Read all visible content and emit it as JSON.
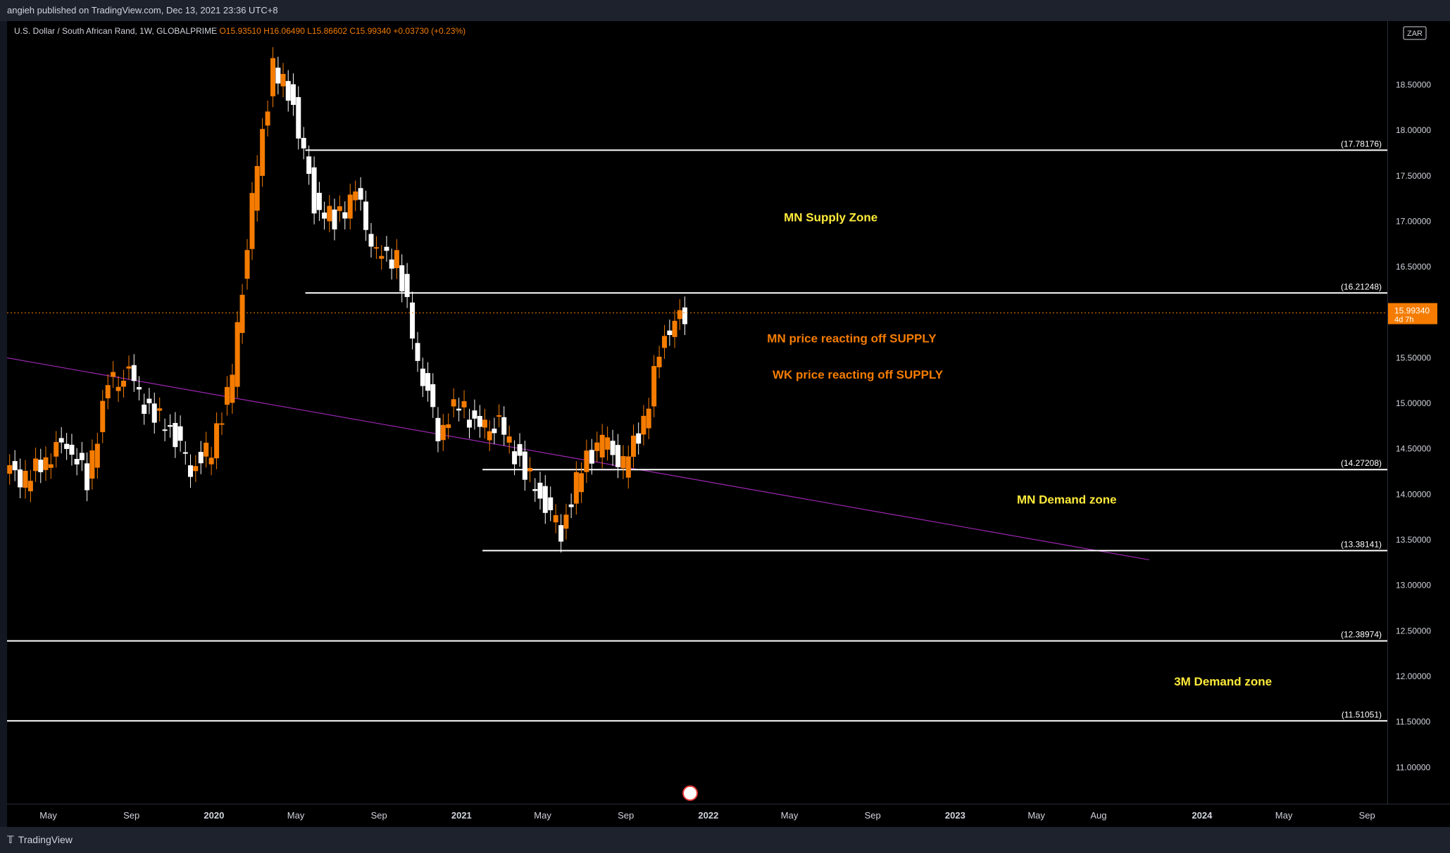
{
  "header": {
    "published": "angieh published on TradingView.com, Dec 13, 2021 23:36 UTC+8"
  },
  "legend": {
    "symbol": "U.S. Dollar / South African Rand, 1W, GLOBALPRIME",
    "open": "O15.93510",
    "high": "H16.06490",
    "low": "L15.86602",
    "close": "C15.99340",
    "change": "+0.03730 (+0.23%)"
  },
  "price_scale": {
    "currency": "ZAR",
    "last_price": "15.99340",
    "countdown": "4d 7h"
  },
  "footer": {
    "brand": "TradingView"
  },
  "colors": {
    "background": "#000000",
    "bull": "#f57c00",
    "bear": "#ffffff",
    "level_line": "#ffffff",
    "trendline": "#9c27b0",
    "zone_label": "#ffeb3b",
    "reaction_label": "#f57c00"
  },
  "chart_data": {
    "type": "candlestick",
    "title": "U.S. Dollar / South African Rand, 1W, GLOBALPRIME",
    "x_axis": {
      "start": "2019-03",
      "end": "2024-10",
      "tick_labels": [
        {
          "label": "May",
          "date": "2019-05-01"
        },
        {
          "label": "Sep",
          "date": "2019-09-01"
        },
        {
          "label": "2020",
          "date": "2020-01-01"
        },
        {
          "label": "May",
          "date": "2020-05-01"
        },
        {
          "label": "Sep",
          "date": "2020-09-01"
        },
        {
          "label": "2021",
          "date": "2021-01-01"
        },
        {
          "label": "May",
          "date": "2021-05-01"
        },
        {
          "label": "Sep",
          "date": "2021-09-01"
        },
        {
          "label": "2022",
          "date": "2022-01-01"
        },
        {
          "label": "May",
          "date": "2022-05-01"
        },
        {
          "label": "Sep",
          "date": "2022-09-01"
        },
        {
          "label": "2023",
          "date": "2023-01-01"
        },
        {
          "label": "May",
          "date": "2023-05-01"
        },
        {
          "label": "Aug",
          "date": "2023-08-01"
        },
        {
          "label": "2024",
          "date": "2024-01-01"
        },
        {
          "label": "May",
          "date": "2024-05-01"
        },
        {
          "label": "Sep",
          "date": "2024-09-01"
        }
      ]
    },
    "y_axis": {
      "range": [
        10.6,
        19.2
      ],
      "ticks": [
        "18.50000",
        "18.00000",
        "17.50000",
        "17.00000",
        "16.50000",
        "16.00000",
        "15.50000",
        "15.00000",
        "14.50000",
        "14.00000",
        "13.50000",
        "13.00000",
        "12.50000",
        "12.00000",
        "11.50000",
        "11.00000"
      ]
    },
    "grid": false,
    "last_price": 15.9934,
    "series": [
      {
        "kind": "weekly close (approx.)",
        "points": [
          {
            "date": "2019-03-01",
            "close": 14.3
          },
          {
            "date": "2019-04-01",
            "close": 14.15
          },
          {
            "date": "2019-05-01",
            "close": 14.4
          },
          {
            "date": "2019-06-01",
            "close": 14.6
          },
          {
            "date": "2019-07-01",
            "close": 14.15
          },
          {
            "date": "2019-08-01",
            "close": 15.2
          },
          {
            "date": "2019-09-01",
            "close": 15.3
          },
          {
            "date": "2019-10-01",
            "close": 14.9
          },
          {
            "date": "2019-11-01",
            "close": 14.75
          },
          {
            "date": "2019-12-01",
            "close": 14.3
          },
          {
            "date": "2020-01-01",
            "close": 14.5
          },
          {
            "date": "2020-02-01",
            "close": 15.3
          },
          {
            "date": "2020-03-01",
            "close": 17.2
          },
          {
            "date": "2020-04-01",
            "close": 18.7
          },
          {
            "date": "2020-05-01",
            "close": 18.3
          },
          {
            "date": "2020-06-01",
            "close": 17.2
          },
          {
            "date": "2020-07-01",
            "close": 17.0
          },
          {
            "date": "2020-08-01",
            "close": 17.3
          },
          {
            "date": "2020-09-01",
            "close": 16.6
          },
          {
            "date": "2020-10-01",
            "close": 16.6
          },
          {
            "date": "2020-11-01",
            "close": 15.5
          },
          {
            "date": "2020-12-01",
            "close": 14.7
          },
          {
            "date": "2021-01-01",
            "close": 15.0
          },
          {
            "date": "2021-02-01",
            "close": 14.7
          },
          {
            "date": "2021-03-01",
            "close": 14.75
          },
          {
            "date": "2021-04-01",
            "close": 14.35
          },
          {
            "date": "2021-05-01",
            "close": 14.0
          },
          {
            "date": "2021-06-01",
            "close": 13.6
          },
          {
            "date": "2021-07-01",
            "close": 14.3
          },
          {
            "date": "2021-08-01",
            "close": 14.6
          },
          {
            "date": "2021-09-01",
            "close": 14.3
          },
          {
            "date": "2021-10-01",
            "close": 14.8
          },
          {
            "date": "2021-11-01",
            "close": 15.8
          },
          {
            "date": "2021-12-01",
            "close": 15.99
          }
        ]
      }
    ],
    "levels": [
      {
        "label": "(17.78176)",
        "value": 17.78176,
        "from": "2020-05-15",
        "to": "2024-10-01"
      },
      {
        "label": "(16.21248)",
        "value": 16.21248,
        "from": "2020-05-15",
        "to": "2024-10-01"
      },
      {
        "label": "(14.27208)",
        "value": 14.27208,
        "from": "2021-02-01",
        "to": "2024-10-01"
      },
      {
        "label": "(13.38141)",
        "value": 13.38141,
        "from": "2021-02-01",
        "to": "2024-10-01"
      },
      {
        "label": "(12.38974)",
        "value": 12.38974,
        "from": "2019-03-01",
        "to": "2024-10-01"
      },
      {
        "label": "(11.51051)",
        "value": 11.51051,
        "from": "2019-03-01",
        "to": "2024-10-01"
      }
    ],
    "trendline": {
      "from": {
        "date": "2019-03-01",
        "value": 15.5
      },
      "to": {
        "date": "2023-10-15",
        "value": 13.28
      }
    },
    "annotations": [
      {
        "text": "MN Supply Zone",
        "date": "2022-07-01",
        "value": 17.0,
        "color": "zone"
      },
      {
        "text": "MN price reacting off SUPPLY",
        "date": "2022-08-01",
        "value": 15.67,
        "color": "reaction"
      },
      {
        "text": "WK price reacting off SUPPLY",
        "date": "2022-08-10",
        "value": 15.27,
        "color": "reaction"
      },
      {
        "text": "MN Demand zone",
        "date": "2023-06-15",
        "value": 13.9,
        "color": "zone"
      },
      {
        "text": "3M Demand zone",
        "date": "2024-02-01",
        "value": 11.9,
        "color": "zone"
      }
    ]
  }
}
